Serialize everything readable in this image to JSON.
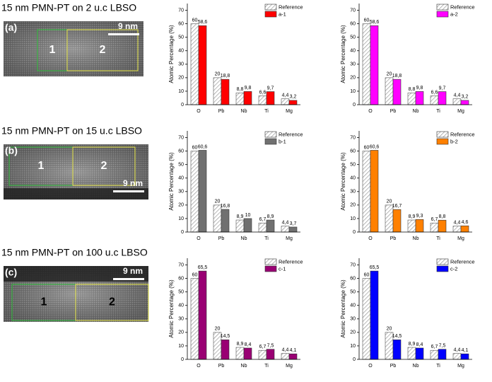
{
  "figure": {
    "rows": [
      {
        "title": "15 nm PMN-PT on 2 u.c LBSO",
        "panel_label": "(a)",
        "scale_bar": "9 nm",
        "regions": [
          "1",
          "2"
        ]
      },
      {
        "title": "15 nm PMN-PT on 15 u.c LBSO",
        "panel_label": "(b)",
        "scale_bar": "9 nm",
        "regions": [
          "1",
          "2"
        ]
      },
      {
        "title": "15 nm PMN-PT on 100 u.c LBSO",
        "panel_label": "(c)",
        "scale_bar": "9 nm",
        "regions": [
          "1",
          "2"
        ]
      }
    ]
  },
  "chart_data": [
    {
      "type": "bar",
      "ylabel": "Atomic Percentage (%)",
      "categories": [
        "O",
        "Pb",
        "Nb",
        "Ti",
        "Mg"
      ],
      "ylim": [
        0,
        75
      ],
      "yticks": [
        0,
        10,
        20,
        30,
        40,
        50,
        60,
        70
      ],
      "legend": "upper right",
      "series": [
        {
          "name": "Reference",
          "color": "#ffffff",
          "pattern": "hatch",
          "values": [
            60,
            20,
            8.8,
            6.6,
            4.4
          ],
          "value_labels": [
            "60",
            "20",
            "8,8",
            "6,6",
            "4,4"
          ]
        },
        {
          "name": "a-1",
          "color": "#ff0000",
          "values": [
            58.6,
            18.8,
            9.8,
            9.7,
            3.2
          ],
          "value_labels": [
            "58,6",
            "18,8",
            "9,8",
            "9,7",
            "3,2"
          ]
        }
      ]
    },
    {
      "type": "bar",
      "ylabel": "Atomic Percentage (%)",
      "categories": [
        "O",
        "Pb",
        "Nb",
        "Ti",
        "Mg"
      ],
      "ylim": [
        0,
        75
      ],
      "yticks": [
        0,
        10,
        20,
        30,
        40,
        50,
        60,
        70
      ],
      "legend": "upper right",
      "series": [
        {
          "name": "Reference",
          "color": "#ffffff",
          "pattern": "hatch",
          "values": [
            60,
            20,
            8.8,
            6.6,
            4.4
          ],
          "value_labels": [
            "60",
            "20",
            "8,8",
            "6,6",
            "4,4"
          ]
        },
        {
          "name": "a-2",
          "color": "#ff00ff",
          "values": [
            58.6,
            18.8,
            9.8,
            9.7,
            3.2
          ],
          "value_labels": [
            "58,6",
            "18,8",
            "9,8",
            "9,7",
            "3,2"
          ]
        }
      ]
    },
    {
      "type": "bar",
      "ylabel": "Atomic Percentage (%)",
      "categories": [
        "O",
        "Pb",
        "Nb",
        "Ti",
        "Mg"
      ],
      "ylim": [
        0,
        75
      ],
      "yticks": [
        0,
        10,
        20,
        30,
        40,
        50,
        60,
        70
      ],
      "legend": "upper right",
      "series": [
        {
          "name": "Reference",
          "color": "#ffffff",
          "pattern": "hatch",
          "values": [
            60,
            20,
            8.9,
            6.7,
            4.4
          ],
          "value_labels": [
            "60",
            "20",
            "8,9",
            "6,7",
            "4,4"
          ]
        },
        {
          "name": "b-1",
          "color": "#707070",
          "values": [
            60.6,
            16.8,
            10,
            8.9,
            3.7
          ],
          "value_labels": [
            "60,6",
            "16,8",
            "10",
            "8,9",
            "3,7"
          ]
        }
      ]
    },
    {
      "type": "bar",
      "ylabel": "Atomic Percentage (%)",
      "categories": [
        "O",
        "Pb",
        "Nb",
        "Ti",
        "Mg"
      ],
      "ylim": [
        0,
        75
      ],
      "yticks": [
        0,
        10,
        20,
        30,
        40,
        50,
        60,
        70
      ],
      "legend": "upper right",
      "series": [
        {
          "name": "Reference",
          "color": "#ffffff",
          "pattern": "hatch",
          "values": [
            60,
            20,
            8.9,
            6.7,
            4.4
          ],
          "value_labels": [
            "60",
            "20",
            "8,9",
            "6,7",
            "4,4"
          ]
        },
        {
          "name": "b-2",
          "color": "#ff8000",
          "values": [
            60.6,
            16.7,
            9.3,
            8.8,
            4.6
          ],
          "value_labels": [
            "60,6",
            "16,7",
            "9,3",
            "8,8",
            "4,6"
          ]
        }
      ]
    },
    {
      "type": "bar",
      "ylabel": "Atomic Percentage (%)",
      "categories": [
        "O",
        "Pb",
        "Nb",
        "Ti",
        "Mg"
      ],
      "ylim": [
        0,
        75
      ],
      "yticks": [
        0,
        10,
        20,
        30,
        40,
        50,
        60,
        70
      ],
      "legend": "upper right",
      "series": [
        {
          "name": "Reference",
          "color": "#ffffff",
          "pattern": "hatch",
          "values": [
            60,
            20,
            8.9,
            6.7,
            4.4
          ],
          "value_labels": [
            "60",
            "20",
            "8,9",
            "6,7",
            "4,4"
          ]
        },
        {
          "name": "c-1",
          "color": "#990073",
          "values": [
            65.5,
            14.5,
            8.4,
            7.5,
            4.1
          ],
          "value_labels": [
            "65,5",
            "14,5",
            "8,4",
            "7,5",
            "4,1"
          ]
        }
      ]
    },
    {
      "type": "bar",
      "ylabel": "Atomic Percentage (%)",
      "categories": [
        "O",
        "Pb",
        "Nb",
        "Ti",
        "Mg"
      ],
      "ylim": [
        0,
        75
      ],
      "yticks": [
        0,
        10,
        20,
        30,
        40,
        50,
        60,
        70
      ],
      "legend": "upper right",
      "series": [
        {
          "name": "Reference",
          "color": "#ffffff",
          "pattern": "hatch",
          "values": [
            60,
            20,
            8.9,
            6.7,
            4.4
          ],
          "value_labels": [
            "60",
            "20",
            "8,9",
            "6,7",
            "4,4"
          ]
        },
        {
          "name": "c-2",
          "color": "#0000ff",
          "values": [
            65.5,
            14.5,
            8.4,
            7.5,
            4.1
          ],
          "value_labels": [
            "65,5",
            "14,5",
            "8,4",
            "7,5",
            "4,1"
          ]
        }
      ]
    }
  ]
}
